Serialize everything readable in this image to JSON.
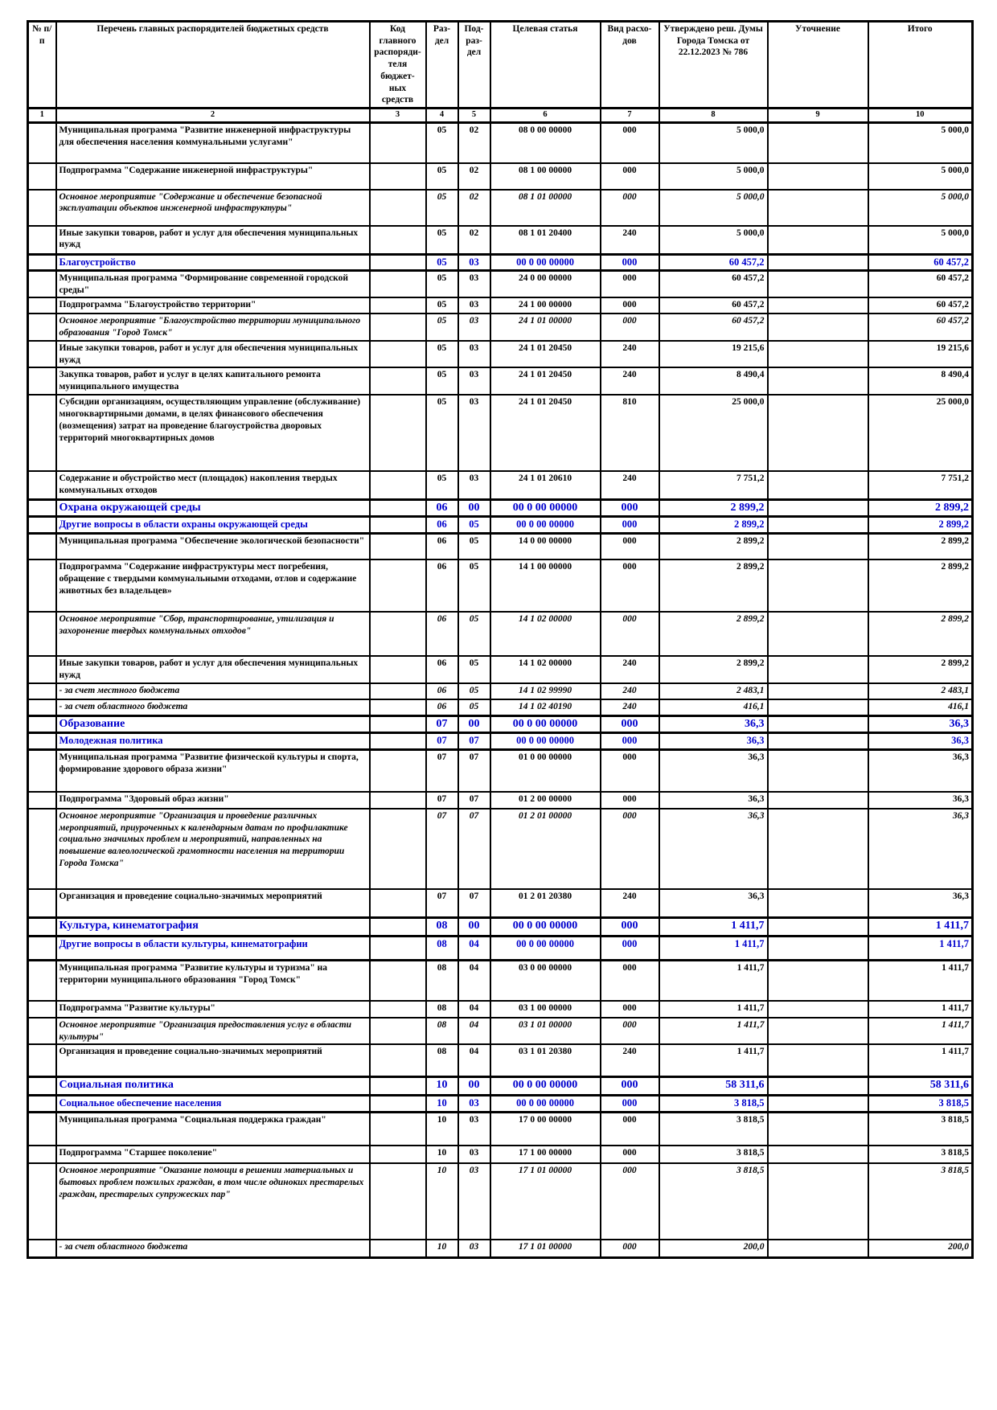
{
  "table": {
    "headers": [
      "№ п/п",
      "Перечень главных распорядителей бюджетных средств",
      "Код главного распоряди- теля бюджет- ных средств",
      "Раз- дел",
      "Под- раз- дел",
      "Целевая статья",
      "Вид расхо- дов",
      "Утверждено реш. Думы Города Томска от 22.12.2023 № 786",
      "Уточнение",
      "Итого"
    ],
    "col_numbers": [
      "1",
      "2",
      "3",
      "4",
      "5",
      "6",
      "7",
      "8",
      "9",
      "10"
    ],
    "accent_color": "#0000cd",
    "rows": [
      {
        "style": "bold",
        "minh": 50,
        "name": "Муниципальная программа \"Развитие инженерной инфраструктуры для обеспечения населения коммунальными услугами\"",
        "rd": "05",
        "pr": "02",
        "cst": "08 0 00 00000",
        "vr": "000",
        "app": "5 000,0",
        "clar": "",
        "total": "5 000,0"
      },
      {
        "style": "bold",
        "minh": 33,
        "name": "Подпрограмма \"Содержание инженерной инфраструктуры\"",
        "rd": "05",
        "pr": "02",
        "cst": "08 1 00 00000",
        "vr": "000",
        "app": "5 000,0",
        "clar": "",
        "total": "5 000,0"
      },
      {
        "style": "bolditalic",
        "minh": 45,
        "name": "Основное мероприятие \"Содержание и обеспечение безопасной эксплуатации объектов инженерной инфраструктуры\"",
        "rd": "05",
        "pr": "02",
        "cst": "08 1 01 00000",
        "vr": "000",
        "app": "5 000,0",
        "clar": "",
        "total": "5 000,0"
      },
      {
        "style": "normal",
        "minh": 36,
        "name": "Иные закупки товаров, работ и услуг для обеспечения муниципальных нужд",
        "rd": "05",
        "pr": "02",
        "cst": "08 1 01 20400",
        "vr": "240",
        "app": "5 000,0",
        "clar": "",
        "total": "5 000,0"
      },
      {
        "style": "sec2",
        "minh": 20,
        "name": "Благоустройство",
        "rd": "05",
        "pr": "03",
        "cst": "00 0 00 00000",
        "vr": "000",
        "app": "60 457,2",
        "clar": "",
        "total": "60 457,2"
      },
      {
        "style": "bold",
        "minh": 33,
        "name": "Муниципальная программа \"Формирование современной городской среды\"",
        "rd": "05",
        "pr": "03",
        "cst": "24 0 00 00000",
        "vr": "000",
        "app": "60 457,2",
        "clar": "",
        "total": "60 457,2"
      },
      {
        "style": "bold",
        "minh": 20,
        "name": "Подпрограмма \"Благоустройство территории\"",
        "rd": "05",
        "pr": "03",
        "cst": "24 1 00 00000",
        "vr": "000",
        "app": "60 457,2",
        "clar": "",
        "total": "60 457,2"
      },
      {
        "style": "bolditalic",
        "minh": 32,
        "name": "Основное мероприятие \"Благоустройство территории муниципального образования \"Город Томск\"",
        "rd": "05",
        "pr": "03",
        "cst": "24 1 01 00000",
        "vr": "000",
        "app": "60 457,2",
        "clar": "",
        "total": "60 457,2"
      },
      {
        "style": "normal",
        "minh": 33,
        "name": "Иные закупки товаров, работ и услуг для обеспечения муниципальных нужд",
        "rd": "05",
        "pr": "03",
        "cst": "24 1 01 20450",
        "vr": "240",
        "app": "19 215,6",
        "clar": "",
        "total": "19 215,6"
      },
      {
        "style": "normal",
        "minh": 34,
        "name": "Закупка товаров, работ и услуг в целях капитального ремонта муниципального имущества",
        "rd": "05",
        "pr": "03",
        "cst": "24 1 01 20450",
        "vr": "240",
        "app": "8 490,4",
        "clar": "",
        "total": "8 490,4"
      },
      {
        "style": "normal",
        "minh": 95,
        "name": "Субсидии организациям, осуществляющим управление (обслуживание) многоквартирными домами, в целях финансового обеспечения (возмещения) затрат на проведение благоустройства дворовых территорий многоквартирных домов",
        "rd": "05",
        "pr": "03",
        "cst": "24 1 01 20450",
        "vr": "810",
        "app": "25 000,0",
        "clar": "",
        "total": "25 000,0"
      },
      {
        "style": "normal",
        "minh": 35,
        "name": "Содержание и обустройство мест (площадок) накопления твердых коммунальных отходов",
        "rd": "05",
        "pr": "03",
        "cst": "24 1 01 20610",
        "vr": "240",
        "app": "7 751,2",
        "clar": "",
        "total": "7 751,2"
      },
      {
        "style": "sec1",
        "minh": 21,
        "name": "Охрана окружающей среды",
        "rd": "06",
        "pr": "00",
        "cst": "00 0 00 00000",
        "vr": "000",
        "app": "2 899,2",
        "clar": "",
        "total": "2 899,2"
      },
      {
        "style": "sec2",
        "minh": 21,
        "name": "Другие вопросы в области охраны окружающей среды",
        "rd": "06",
        "pr": "05",
        "cst": "00 0 00 00000",
        "vr": "000",
        "app": "2 899,2",
        "clar": "",
        "total": "2 899,2"
      },
      {
        "style": "bold",
        "minh": 33,
        "name": "Муниципальная программа \"Обеспечение экологической безопасности\"",
        "rd": "06",
        "pr": "05",
        "cst": "14 0 00 00000",
        "vr": "000",
        "app": "2 899,2",
        "clar": "",
        "total": "2 899,2"
      },
      {
        "style": "bold",
        "minh": 65,
        "name": "Подпрограмма \"Содержание инфраструктуры мест погребения, обращение с твердыми коммунальными отходами, отлов и содержание животных без владельцев»",
        "rd": "06",
        "pr": "05",
        "cst": "14 1 00 00000",
        "vr": "000",
        "app": "2 899,2",
        "clar": "",
        "total": "2 899,2"
      },
      {
        "style": "bolditalic",
        "minh": 55,
        "name": "Основное мероприятие \"Сбор, транспортирование, утилизация и захоронение твердых коммунальных отходов\"",
        "rd": "06",
        "pr": "05",
        "cst": "14 1 02 00000",
        "vr": "000",
        "app": "2 899,2",
        "clar": "",
        "total": "2 899,2"
      },
      {
        "style": "normal",
        "minh": 33,
        "name": "Иные закупки товаров, работ и услуг для обеспечения муниципальных нужд",
        "rd": "06",
        "pr": "05",
        "cst": "14 1 02 00000",
        "vr": "240",
        "app": "2 899,2",
        "clar": "",
        "total": "2 899,2"
      },
      {
        "style": "italic",
        "minh": 20,
        "name": "- за счет местного бюджета",
        "rd": "06",
        "pr": "05",
        "cst": "14 1 02 99990",
        "vr": "240",
        "app": "2 483,1",
        "clar": "",
        "total": "2 483,1"
      },
      {
        "style": "italic",
        "minh": 21,
        "name": "- за счет областного бюджета",
        "rd": "06",
        "pr": "05",
        "cst": "14 1 02 40190",
        "vr": "240",
        "app": "416,1",
        "clar": "",
        "total": "416,1"
      },
      {
        "style": "sec1",
        "minh": 21,
        "name": "Образование",
        "rd": "07",
        "pr": "00",
        "cst": "00 0 00 00000",
        "vr": "000",
        "app": "36,3",
        "clar": "",
        "total": "36,3"
      },
      {
        "style": "sec2",
        "minh": 21,
        "name": "Молодежная политика",
        "rd": "07",
        "pr": "07",
        "cst": "00 0 00 00000",
        "vr": "000",
        "app": "36,3",
        "clar": "",
        "total": "36,3"
      },
      {
        "style": "bold",
        "minh": 52,
        "name": "Муниципальная программа \"Развитие физической культуры и спорта, формирование здорового образа жизни\"",
        "rd": "07",
        "pr": "07",
        "cst": "01 0 00 00000",
        "vr": "000",
        "app": "36,3",
        "clar": "",
        "total": "36,3"
      },
      {
        "style": "bold",
        "minh": 21,
        "name": "Подпрограмма \"Здоровый образ жизни\"",
        "rd": "07",
        "pr": "07",
        "cst": "01 2 00 00000",
        "vr": "000",
        "app": "36,3",
        "clar": "",
        "total": "36,3"
      },
      {
        "style": "bolditalic",
        "minh": 100,
        "name": "Основное мероприятие \"Организация и проведение различных мероприятий, приуроченных к календарным датам по профилактике социально значимых проблем и мероприятий, направленных на повышение валеологической грамотности населения на территории Города Томска\"",
        "rd": "07",
        "pr": "07",
        "cst": "01 2 01 00000",
        "vr": "000",
        "app": "36,3",
        "clar": "",
        "total": "36,3"
      },
      {
        "style": "normal",
        "minh": 36,
        "name": "Организация и проведение социально-значимых мероприятий",
        "rd": "07",
        "pr": "07",
        "cst": "01 2 01 20380",
        "vr": "240",
        "app": "36,3",
        "clar": "",
        "total": "36,3"
      },
      {
        "style": "sec1",
        "minh": 23,
        "name": "Культура, кинематография",
        "rd": "08",
        "pr": "00",
        "cst": "00 0 00 00000",
        "vr": "000",
        "app": "1 411,7",
        "clar": "",
        "total": "1 411,7"
      },
      {
        "style": "sec2",
        "minh": 30,
        "name": "Другие вопросы в области культуры, кинематографии",
        "rd": "08",
        "pr": "04",
        "cst": "00 0 00 00000",
        "vr": "000",
        "app": "1 411,7",
        "clar": "",
        "total": "1 411,7"
      },
      {
        "style": "bold",
        "minh": 50,
        "name": "Муниципальная программа \"Развитие культуры и туризма\" на территории муниципального образования \"Город Томск\"",
        "rd": "08",
        "pr": "04",
        "cst": "03 0 00 00000",
        "vr": "000",
        "app": "1 411,7",
        "clar": "",
        "total": "1 411,7"
      },
      {
        "style": "bold",
        "minh": 21,
        "name": "Подпрограмма \"Развитие культуры\"",
        "rd": "08",
        "pr": "04",
        "cst": "03 1 00 00000",
        "vr": "000",
        "app": "1 411,7",
        "clar": "",
        "total": "1 411,7"
      },
      {
        "style": "bolditalic",
        "minh": 33,
        "name": "Основное мероприятие \"Организация предоставления услуг  в области культуры\"",
        "rd": "08",
        "pr": "04",
        "cst": "03 1 01 00000",
        "vr": "000",
        "app": "1 411,7",
        "clar": "",
        "total": "1 411,7"
      },
      {
        "style": "normal",
        "minh": 40,
        "name": "Организация и проведение социально-значимых мероприятий",
        "rd": "08",
        "pr": "04",
        "cst": "03 1 01 20380",
        "vr": "240",
        "app": "1 411,7",
        "clar": "",
        "total": "1 411,7"
      },
      {
        "style": "sec1",
        "minh": 23,
        "name": "Социальная политика",
        "rd": "10",
        "pr": "00",
        "cst": "00 0 00 00000",
        "vr": "000",
        "app": "58 311,6",
        "clar": "",
        "total": "58 311,6"
      },
      {
        "style": "sec2",
        "minh": 21,
        "name": "Социальное обеспечение населения",
        "rd": "10",
        "pr": "03",
        "cst": "00 0 00 00000",
        "vr": "000",
        "app": "3 818,5",
        "clar": "",
        "total": "3 818,5"
      },
      {
        "style": "bold",
        "minh": 42,
        "name": "Муниципальная программа \"Социальная поддержка граждан\"",
        "rd": "10",
        "pr": "03",
        "cst": "17 0 00 00000",
        "vr": "000",
        "app": "3 818,5",
        "clar": "",
        "total": "3 818,5"
      },
      {
        "style": "bold",
        "minh": 22,
        "name": "Подпрограмма \"Старшее поколение\"",
        "rd": "10",
        "pr": "03",
        "cst": "17 1 00 00000",
        "vr": "000",
        "app": "3 818,5",
        "clar": "",
        "total": "3 818,5"
      },
      {
        "style": "bolditalic",
        "minh": 95,
        "name": "Основное мероприятие \"Оказание помощи в решении материальных и бытовых проблем пожилых граждан, в том числе одиноких престарелых граждан, престарелых супружеских пар\"",
        "rd": "10",
        "pr": "03",
        "cst": "17 1 01 00000",
        "vr": "000",
        "app": "3 818,5",
        "clar": "",
        "total": "3 818,5"
      },
      {
        "style": "italic",
        "minh": 22,
        "name": "- за счет областного бюджета",
        "rd": "10",
        "pr": "03",
        "cst": "17 1 01 00000",
        "vr": "000",
        "app": "200,0",
        "clar": "",
        "total": "200,0"
      }
    ]
  }
}
